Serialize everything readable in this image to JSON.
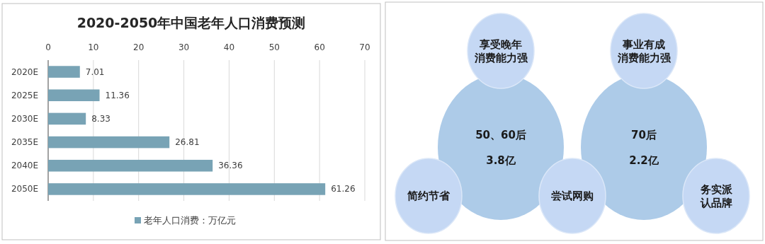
{
  "chart_data": [
    {
      "type": "bar",
      "title": "2020-2050年中国老年人口消费预测",
      "orientation": "horizontal",
      "categories": [
        "2020E",
        "2025E",
        "2030E",
        "2035E",
        "2040E",
        "2050E"
      ],
      "series": [
        {
          "name": "老年人口消费：万亿元",
          "color": "#78a3b5",
          "values": [
            7.01,
            11.36,
            8.33,
            26.81,
            36.36,
            61.26
          ]
        }
      ],
      "xlim": [
        0,
        70
      ],
      "xticks": [
        0,
        10,
        20,
        30,
        40,
        50,
        60,
        70
      ],
      "grid": "x",
      "legend": "bottom",
      "data_labels": true
    },
    {
      "type": "other",
      "annotations": [
        "享受晚年消费能力强",
        "事业有成消费能力强",
        "50、60后",
        "3.8亿",
        "70后",
        "2.2亿",
        "简约节省",
        "尝试网购",
        "务实派认品牌"
      ]
    }
  ]
}
